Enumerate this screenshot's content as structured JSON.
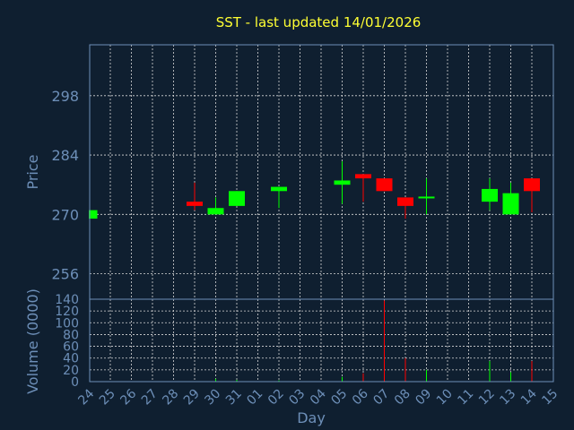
{
  "chart_data": {
    "type": "candlestick",
    "title": "SST - last updated 14/01/2026",
    "ylabel": "Price",
    "volume_label": "Volume (0000)",
    "xlabel": "Day",
    "categories": [
      "24",
      "25",
      "26",
      "27",
      "28",
      "29",
      "30",
      "31",
      "01",
      "02",
      "03",
      "04",
      "05",
      "06",
      "07",
      "08",
      "09",
      "10",
      "11",
      "12",
      "13",
      "14",
      "15"
    ],
    "price_ticks": [
      "298",
      "284",
      "270",
      "256"
    ],
    "price_tick_values": [
      298,
      284,
      270,
      256
    ],
    "price_ylim": [
      250,
      310
    ],
    "volume_ticks": [
      "140",
      "120",
      "100",
      "80",
      "60",
      "40",
      "20",
      "0"
    ],
    "volume_tick_values": [
      140,
      120,
      100,
      80,
      60,
      40,
      20,
      0
    ],
    "volume_ylim": [
      0,
      140
    ],
    "grid": true,
    "colors": {
      "up": "#00ff00",
      "down": "#ff0000",
      "background": "#0f1f30",
      "plot_border": "#6d8fb8",
      "grid": "#d8d8d8",
      "title": "#ffff33",
      "label": "#6d8fb8"
    },
    "candles": [
      {
        "x": "24",
        "open": 269,
        "high": 271,
        "low": 269,
        "close": 271
      },
      {
        "x": "29",
        "open": 273,
        "high": 277.5,
        "low": 271,
        "close": 272
      },
      {
        "x": "30",
        "open": 270,
        "high": 274,
        "low": 270,
        "close": 271.5
      },
      {
        "x": "31",
        "open": 272,
        "high": 275.5,
        "low": 272,
        "close": 275.5
      },
      {
        "x": "02",
        "open": 275.5,
        "high": 276.5,
        "low": 271.5,
        "close": 276.5
      },
      {
        "x": "05",
        "open": 277,
        "high": 282.5,
        "low": 272.5,
        "close": 278
      },
      {
        "x": "06",
        "open": 279.5,
        "high": 279.5,
        "low": 273,
        "close": 278.5
      },
      {
        "x": "07",
        "open": 278.5,
        "high": 278.5,
        "low": 275.5,
        "close": 275.5
      },
      {
        "x": "08",
        "open": 274,
        "high": 274,
        "low": 269,
        "close": 272
      },
      {
        "x": "09",
        "open": 274,
        "high": 278.5,
        "low": 270,
        "close": 274.2
      },
      {
        "x": "12",
        "open": 273,
        "high": 278.5,
        "low": 271,
        "close": 276
      },
      {
        "x": "13",
        "open": 270,
        "high": 277.5,
        "low": 270,
        "close": 275
      },
      {
        "x": "14",
        "open": 278.5,
        "high": 278.5,
        "low": 270.5,
        "close": 275.5
      }
    ],
    "volume": [
      {
        "x": "30",
        "value": 5,
        "dir": "up"
      },
      {
        "x": "31",
        "value": 3,
        "dir": "up"
      },
      {
        "x": "02",
        "value": 2,
        "dir": "up"
      },
      {
        "x": "05",
        "value": 8,
        "dir": "up"
      },
      {
        "x": "06",
        "value": 14,
        "dir": "down"
      },
      {
        "x": "07",
        "value": 138,
        "dir": "down"
      },
      {
        "x": "08",
        "value": 40,
        "dir": "down"
      },
      {
        "x": "09",
        "value": 20,
        "dir": "up"
      },
      {
        "x": "12",
        "value": 35,
        "dir": "up"
      },
      {
        "x": "13",
        "value": 16,
        "dir": "up"
      },
      {
        "x": "14",
        "value": 35,
        "dir": "down"
      }
    ]
  }
}
